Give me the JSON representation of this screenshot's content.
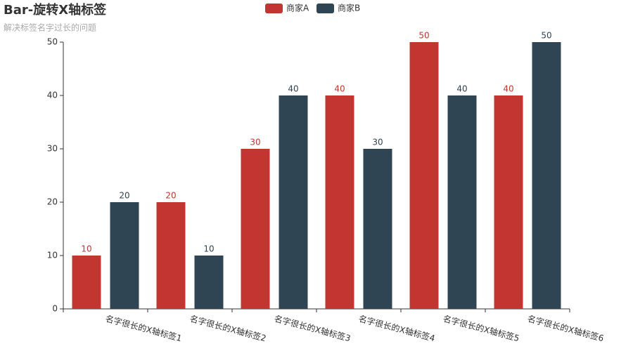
{
  "chart_data": {
    "type": "bar",
    "title": "Bar-旋转X轴标签",
    "subtitle": "解决标签名字过长的问题",
    "categories": [
      "名字很长的X轴标签1",
      "名字很长的X轴标签2",
      "名字很长的X轴标签3",
      "名字很长的X轴标签4",
      "名字很长的X轴标签5",
      "名字很长的X轴标签6"
    ],
    "series": [
      {
        "name": "商家A",
        "color": "#c23531",
        "values": [
          10,
          20,
          30,
          40,
          50,
          40
        ]
      },
      {
        "name": "商家B",
        "color": "#2f4554",
        "values": [
          20,
          10,
          40,
          30,
          40,
          50
        ]
      }
    ],
    "ylim": [
      0,
      50
    ],
    "yticks": [
      0,
      10,
      20,
      30,
      40,
      50
    ],
    "grid": false
  }
}
